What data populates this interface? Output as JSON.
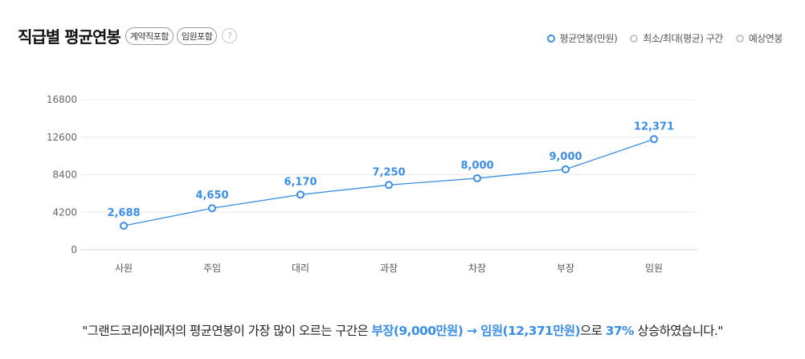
{
  "header": {
    "title": "직급별 평균연봉",
    "tags": [
      "계약직포함",
      "임원포함"
    ],
    "help": "?"
  },
  "legend": {
    "items": [
      {
        "label": "평균연봉(만원)",
        "active": true
      },
      {
        "label": "최소/최대(평균) 구간",
        "active": false
      },
      {
        "label": "예상연봉",
        "active": false
      }
    ]
  },
  "chart_data": {
    "type": "line",
    "categories": [
      "사원",
      "주임",
      "대리",
      "과장",
      "차장",
      "부장",
      "임원"
    ],
    "series": [
      {
        "name": "평균연봉(만원)",
        "values": [
          2688,
          4650,
          6170,
          7250,
          8000,
          9000,
          12371
        ]
      }
    ],
    "value_labels": [
      "2,688",
      "4,650",
      "6,170",
      "7,250",
      "8,000",
      "9,000",
      "12,371"
    ],
    "yticks": [
      0,
      4200,
      8400,
      12600,
      16800
    ],
    "ylim": [
      0,
      16800
    ],
    "grid": true,
    "color": "#3a8ee6"
  },
  "summary": {
    "prefix": "\"그랜드코리아레저의 평균연봉이 가장 많이 오르는 구간은 ",
    "from": "부장(9,000만원)",
    "arrow": " → ",
    "to": "임원(12,371만원)",
    "middle": "으로 ",
    "percent": "37%",
    "suffix": " 상승하였습니다.\""
  }
}
